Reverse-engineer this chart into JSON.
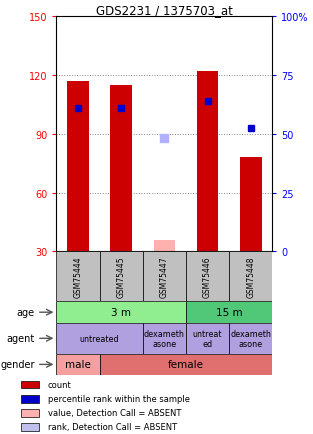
{
  "title": "GDS2231 / 1375703_at",
  "samples": [
    "GSM75444",
    "GSM75445",
    "GSM75447",
    "GSM75446",
    "GSM75448"
  ],
  "red_bars": [
    117,
    115,
    36,
    122,
    78
  ],
  "blue_dots_left": [
    103,
    103,
    null,
    107,
    93
  ],
  "pink_bars": [
    null,
    null,
    36,
    null,
    null
  ],
  "lavender_dots_left": [
    null,
    null,
    88,
    null,
    null
  ],
  "ylim_left": [
    30,
    150
  ],
  "yticks_left": [
    30,
    60,
    90,
    120,
    150
  ],
  "yticks_right": [
    0,
    25,
    50,
    75,
    100
  ],
  "ytick_labels_right": [
    "0",
    "25",
    "50",
    "75",
    "100%"
  ],
  "bar_color": "#cc0000",
  "dot_color": "#0000cc",
  "pink_bar_color": "#ffb0b0",
  "lavender_dot_color": "#b0b0ff",
  "sample_box_color": "#c0c0c0",
  "grid_color": "#888888",
  "age_spans": [
    [
      0,
      3,
      "3 m",
      "#90ee90"
    ],
    [
      3,
      5,
      "15 m",
      "#50c878"
    ]
  ],
  "agent_spans": [
    [
      0,
      2,
      "untreated",
      "#b0a0e0"
    ],
    [
      2,
      3,
      "dexameth\nasone",
      "#b0a0e0"
    ],
    [
      3,
      4,
      "untreat\ned",
      "#b0a0e0"
    ],
    [
      4,
      5,
      "dexameth\nasone",
      "#b0a0e0"
    ]
  ],
  "gender_spans": [
    [
      0,
      1,
      "male",
      "#f4a0a0"
    ],
    [
      1,
      5,
      "female",
      "#e07070"
    ]
  ],
  "legend_items": [
    {
      "color": "#cc0000",
      "label": "count"
    },
    {
      "color": "#0000cc",
      "label": "percentile rank within the sample"
    },
    {
      "color": "#ffb0b0",
      "label": "value, Detection Call = ABSENT"
    },
    {
      "color": "#c0c0f0",
      "label": "rank, Detection Call = ABSENT"
    }
  ]
}
